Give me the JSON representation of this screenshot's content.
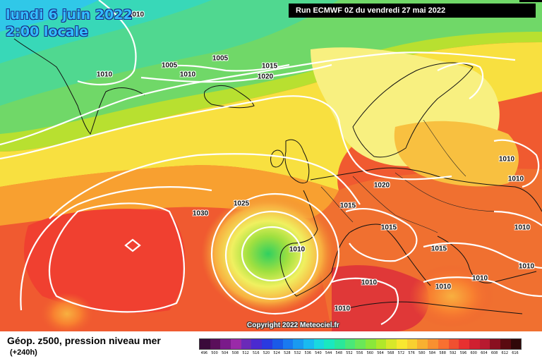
{
  "header": {
    "date_line1": "lundi 6 juin 2022",
    "date_line2": "2:00 locale",
    "run_label": "Run ECMWF 0Z du vendredi 27 mai 2022"
  },
  "isobar_labels": [
    "1010",
    "1005",
    "1005",
    "1010",
    "1010",
    "1015",
    "1020",
    "1020",
    "1025",
    "1015",
    "1030",
    "1010",
    "1010",
    "1015",
    "1010",
    "1010",
    "1010",
    "1015",
    "1010",
    "1010",
    "1010"
  ],
  "footer": {
    "title": "Géop. z500, pression niveau mer",
    "subtitle": "(+240h)",
    "copyright": "Copyright 2022 Meteociel.fr"
  },
  "scale": {
    "values": [
      "496",
      "500",
      "504",
      "508",
      "512",
      "516",
      "520",
      "524",
      "528",
      "532",
      "536",
      "540",
      "544",
      "548",
      "552",
      "556",
      "560",
      "564",
      "568",
      "572",
      "576",
      "580",
      "584",
      "588",
      "592",
      "596",
      "600",
      "604",
      "608",
      "612",
      "616"
    ],
    "colors": [
      "#3a0a3a",
      "#5a0f5a",
      "#7a1a8a",
      "#9a2aa8",
      "#6a2ab8",
      "#4a2ad0",
      "#2a3ae0",
      "#1a5ae8",
      "#1a7af0",
      "#1a9af0",
      "#1abaf0",
      "#1ad8e0",
      "#1ae8c0",
      "#2ae89a",
      "#4ae878",
      "#6ae858",
      "#8ae83a",
      "#b0e82a",
      "#d8e82a",
      "#f8e830",
      "#f8d030",
      "#f8b030",
      "#f89030",
      "#f87030",
      "#f05030",
      "#e83030",
      "#d02030",
      "#b81a30",
      "#8a1020",
      "#5a0a10",
      "#300808"
    ]
  }
}
